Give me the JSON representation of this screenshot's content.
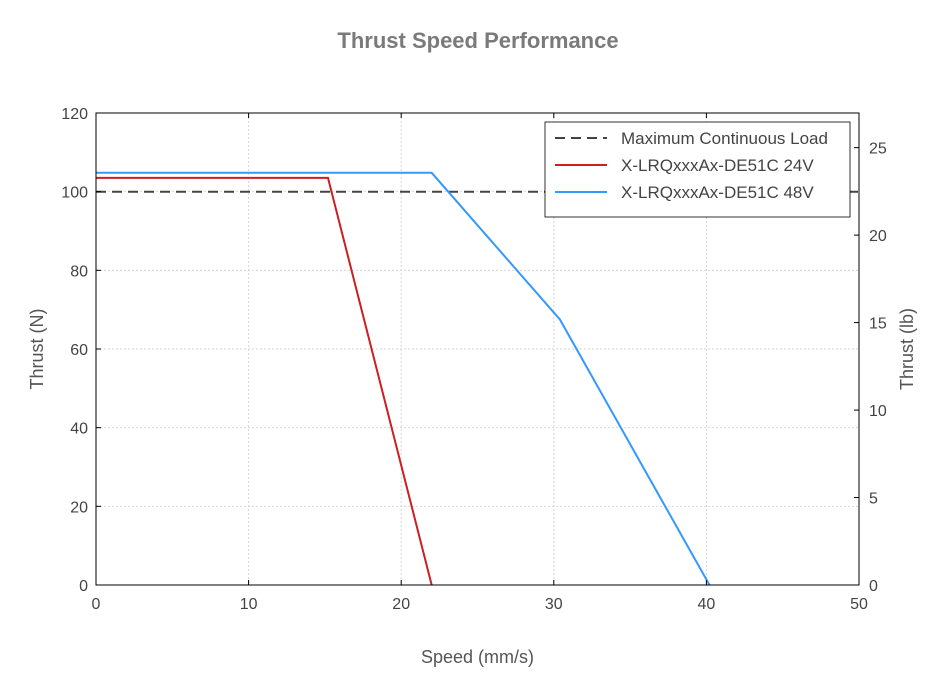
{
  "chart_data": {
    "type": "line",
    "title": "Thrust Speed Performance",
    "xlabel": "Speed (mm/s)",
    "ylabel": "Thrust (N)",
    "ylabel_right": "Thrust (lb)",
    "xlim": [
      0,
      50
    ],
    "ylim": [
      0,
      120
    ],
    "ylim_right": [
      0,
      26.98
    ],
    "x_ticks": [
      "0",
      "10",
      "20",
      "30",
      "40",
      "50"
    ],
    "y_ticks": [
      "0",
      "20",
      "40",
      "60",
      "80",
      "100",
      "120"
    ],
    "y_ticks_right": [
      "0",
      "5",
      "10",
      "15",
      "20",
      "25"
    ],
    "grid": true,
    "legend_position": "top-right",
    "series": [
      {
        "name": "Maximum Continuous Load",
        "color": "#444444",
        "style": "dashed",
        "x": [
          0,
          50
        ],
        "y": [
          100,
          100
        ]
      },
      {
        "name": "X-LRQxxxAx-DE51C 24V",
        "color": "#cc1f1f",
        "style": "solid",
        "x": [
          0,
          15.2,
          22
        ],
        "y": [
          103.5,
          103.5,
          0
        ]
      },
      {
        "name": "X-LRQxxxAx-DE51C 48V",
        "color": "#3399ff",
        "style": "solid",
        "x": [
          0,
          22,
          30.4,
          40.2
        ],
        "y": [
          104.8,
          104.8,
          67.5,
          0
        ]
      }
    ]
  }
}
